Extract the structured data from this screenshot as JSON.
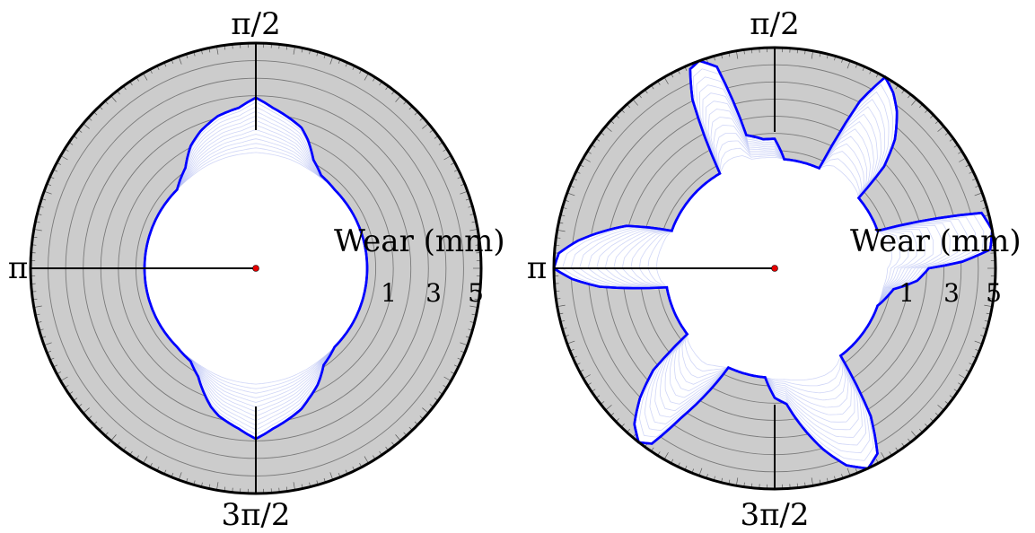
{
  "chart_data": [
    {
      "type": "polar-area",
      "angle_labels": [
        "π/2",
        "π",
        "3π/2"
      ],
      "radial_ticks": [
        "1",
        "3",
        "5"
      ],
      "ylabel": "Wear (mm)",
      "wear_limit_mm": 5,
      "colors": {
        "face": "#cccccc",
        "boundary": "#0000ff",
        "history": "#aab4f0",
        "grid": "#7a7a7a",
        "center": "#e60000"
      },
      "grid": true,
      "profile": {
        "theta_deg": [
          0,
          15,
          30,
          45,
          55,
          62,
          68,
          72,
          76,
          80,
          84,
          87,
          90,
          93,
          96,
          100,
          104,
          108,
          112,
          118,
          125,
          135,
          150,
          165,
          180,
          195,
          210,
          225,
          235,
          242,
          248,
          252,
          256,
          260,
          264,
          267,
          270,
          273,
          276,
          280,
          284,
          288,
          292,
          298,
          305,
          315,
          330,
          345
        ],
        "wear_mm": [
          0,
          0,
          0,
          0,
          0.1,
          0.5,
          1.2,
          1.6,
          1.8,
          2.0,
          2.2,
          2.4,
          2.6,
          2.4,
          2.2,
          2.1,
          2.0,
          1.8,
          1.6,
          1.2,
          0.5,
          0,
          0,
          0,
          0,
          0,
          0,
          0,
          0.1,
          0.5,
          1.1,
          1.5,
          1.8,
          2.0,
          2.2,
          2.4,
          2.6,
          2.4,
          2.2,
          2.0,
          1.8,
          1.6,
          1.3,
          0.9,
          0.3,
          0,
          0,
          0
        ]
      }
    },
    {
      "type": "polar-area",
      "angle_labels": [
        "π/2",
        "π",
        "3π/2"
      ],
      "radial_ticks": [
        "1",
        "3",
        "5"
      ],
      "ylabel": "Wear (mm)",
      "wear_limit_mm": 5,
      "colors": {
        "face": "#cccccc",
        "boundary": "#0000ff",
        "history": "#aab4f0",
        "grid": "#7a7a7a",
        "center": "#e60000"
      },
      "grid": true,
      "profile": {
        "theta_deg": [
          0,
          2,
          5,
          10,
          15,
          20,
          25,
          32,
          40,
          43,
          47,
          52,
          56,
          60,
          63,
          66,
          75,
          85,
          90,
          95,
          102,
          106,
          110,
          113,
          116,
          120,
          140,
          160,
          164,
          168,
          172,
          176,
          180,
          183,
          186,
          190,
          200,
          217,
          220,
          224,
          228,
          232,
          235,
          238,
          245,
          255,
          265,
          270,
          275,
          285,
          290,
          295,
          299,
          303,
          307,
          320,
          340,
          350,
          355
        ],
        "wear_mm": [
          2.0,
          3.5,
          4.8,
          5.0,
          4.7,
          0,
          0,
          0,
          0,
          1.8,
          3.0,
          4.0,
          4.6,
          5.0,
          3.5,
          0,
          0,
          0,
          0.9,
          0.9,
          1.2,
          4.5,
          5.0,
          4.8,
          3.5,
          0,
          0,
          0,
          2.0,
          3.0,
          4.0,
          4.8,
          5.0,
          4.2,
          3.0,
          0,
          0,
          0,
          2.2,
          3.5,
          4.5,
          5.0,
          4.7,
          3.0,
          0,
          0,
          0,
          0.9,
          1.2,
          3.5,
          4.5,
          5.0,
          4.6,
          3.0,
          0,
          0,
          0,
          0.5,
          1.5
        ]
      }
    }
  ]
}
